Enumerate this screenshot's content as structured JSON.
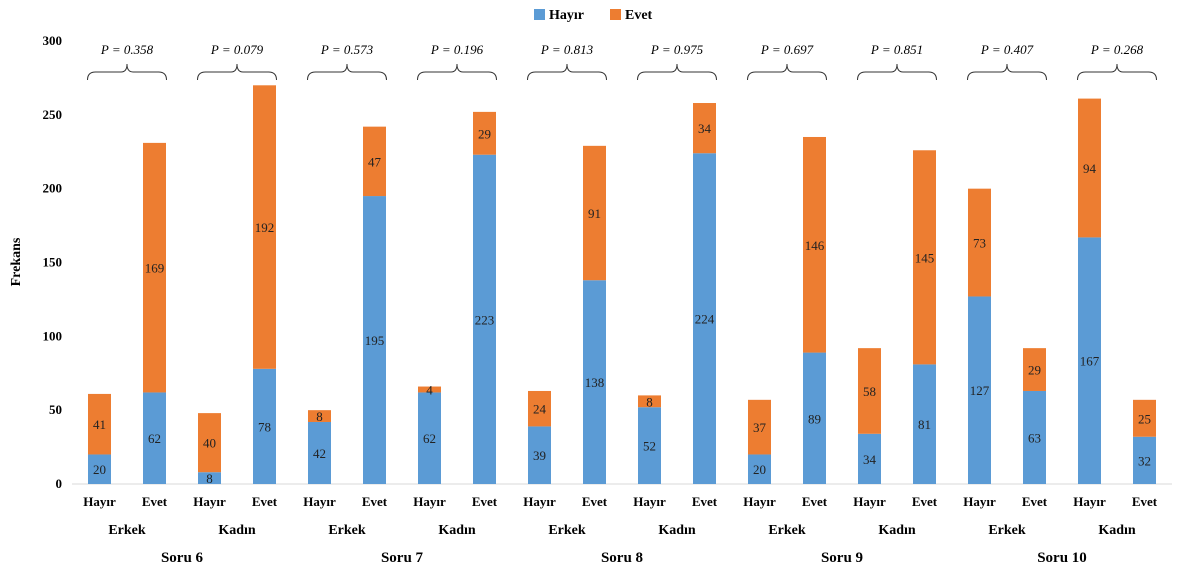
{
  "chart_data": {
    "type": "bar",
    "stacked": true,
    "ylabel": "Frekans",
    "xlabel": "",
    "ylim": [
      0,
      300
    ],
    "yticks": [
      "0",
      "50",
      "100",
      "150",
      "200",
      "250",
      "300"
    ],
    "grid": false,
    "legend_position": "top-center",
    "categories": [
      "Hayır",
      "Evet",
      "Hayır",
      "Evet",
      "Hayır",
      "Evet",
      "Hayır",
      "Evet",
      "Hayır",
      "Evet",
      "Hayır",
      "Evet",
      "Hayır",
      "Evet",
      "Hayır",
      "Evet",
      "Hayır",
      "Evet",
      "Hayır",
      "Evet"
    ],
    "series": [
      {
        "name": "Hayır",
        "color": "#5b9bd5",
        "values": [
          20,
          62,
          8,
          78,
          42,
          195,
          62,
          223,
          39,
          138,
          52,
          224,
          20,
          89,
          34,
          81,
          127,
          63,
          167,
          32
        ]
      },
      {
        "name": "Evet",
        "color": "#ed7d31",
        "values": [
          41,
          169,
          40,
          192,
          8,
          47,
          4,
          29,
          24,
          91,
          8,
          34,
          37,
          146,
          58,
          145,
          73,
          29,
          94,
          25
        ]
      }
    ],
    "gender_groups": [
      "Erkek",
      "Kadın",
      "Erkek",
      "Kadın",
      "Erkek",
      "Kadın",
      "Erkek",
      "Kadın",
      "Erkek",
      "Kadın"
    ],
    "question_groups": [
      "Soru 6",
      "Soru 7",
      "Soru 8",
      "Soru 9",
      "Soru 10"
    ],
    "p_values": [
      "P = 0.358",
      "P = 0.079",
      "P = 0.573",
      "P = 0.196",
      "P = 0.813",
      "P = 0.975",
      "P = 0.697",
      "P = 0.851",
      "P = 0.407",
      "P = 0.268"
    ]
  }
}
